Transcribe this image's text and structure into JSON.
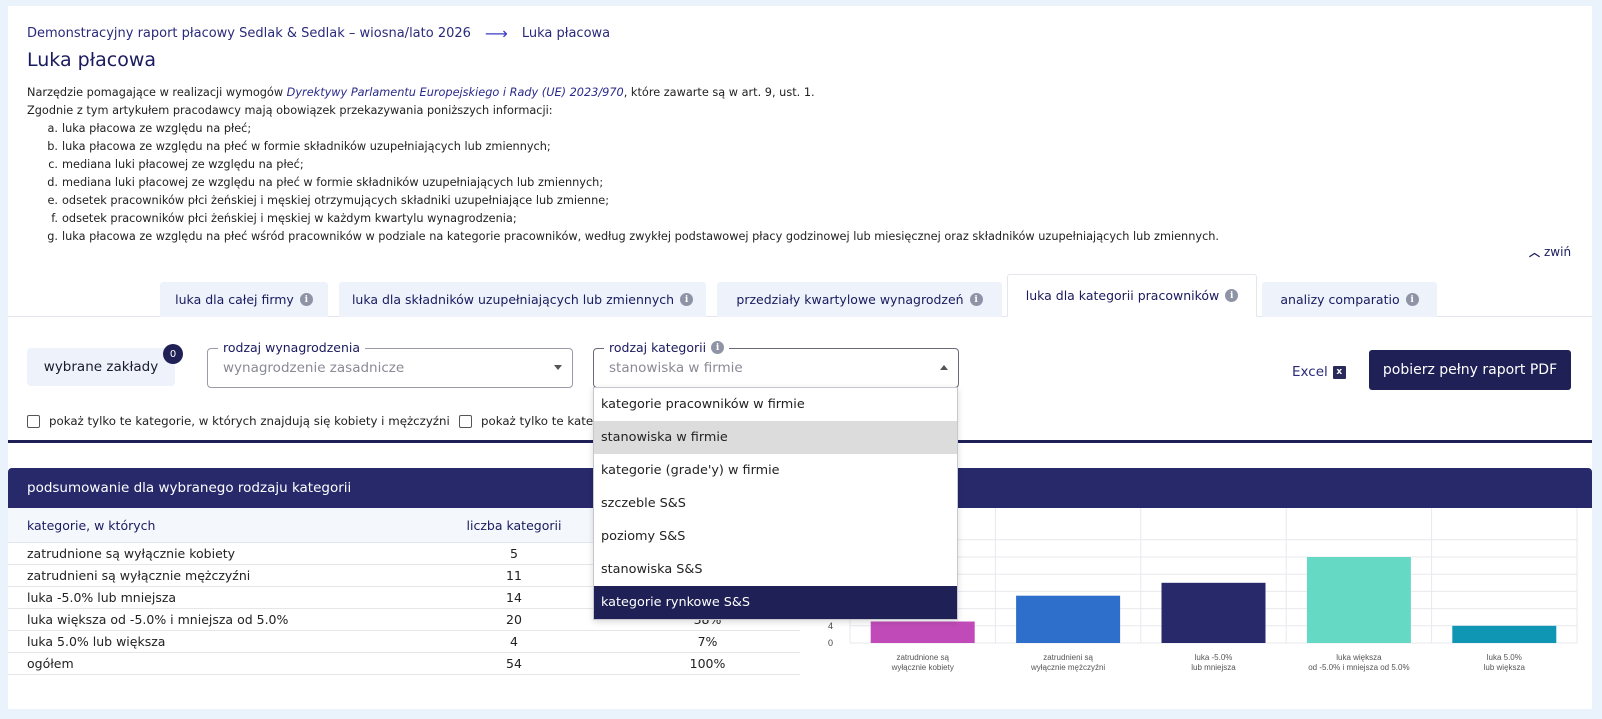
{
  "breadcrumb": {
    "parent": "Demonstracyjny raport płacowy Sedlak & Sedlak – wiosna/lato 2026",
    "arrow": "⟶",
    "current": "Luka płacowa"
  },
  "page_title": "Luka płacowa",
  "intro": {
    "line1_before": "Narzędzie pomagające w realizacji wymogów ",
    "line1_link": "Dyrektywy Parlamentu Europejskiego i Rady (UE) 2023/970",
    "line1_after": ", które zawarte są w art. 9, ust. 1.",
    "line2": "Zgodnie z tym artykułem pracodawcy mają obowiązek przekazywania poniższych informacji:",
    "items": [
      {
        "letter": "a.",
        "text": "luka płacowa ze względu na płeć;"
      },
      {
        "letter": "b.",
        "text": "luka płacowa ze względu na płeć w formie składników uzupełniających lub zmiennych;"
      },
      {
        "letter": "c.",
        "text": "mediana luki płacowej ze względu na płeć;"
      },
      {
        "letter": "d.",
        "text": "mediana luki płacowej ze względu na płeć w formie składników uzupełniających lub zmiennych;"
      },
      {
        "letter": "e.",
        "text": "odsetek pracowników płci żeńskiej i męskiej otrzymujących składniki uzupełniające lub zmienne;"
      },
      {
        "letter": "f.",
        "text": "odsetek pracowników płci żeńskiej i męskiej w każdym kwartylu wynagrodzenia;"
      },
      {
        "letter": "g.",
        "text": "luka płacowa ze względu na płeć wśród pracowników w podziale na kategorie pracowników, według zwykłej podstawowej płacy godzinowej lub miesięcznej oraz składników uzupełniających lub zmiennych."
      }
    ],
    "collapse_label": "zwiń"
  },
  "tabs": [
    {
      "label": "luka dla całej firmy",
      "active": false
    },
    {
      "label": "luka dla składników uzupełniających lub zmiennych",
      "active": false
    },
    {
      "label": "przedziały kwartylowe wynagrodzeń",
      "active": false
    },
    {
      "label": "luka dla kategorii pracowników",
      "active": true
    },
    {
      "label": "analizy comparatio",
      "active": false
    }
  ],
  "info_glyph": "i",
  "filters": {
    "zaklady_label": "wybrane zakłady",
    "zaklady_count": "0",
    "wynagrodzenie": {
      "legend": "rodzaj wynagrodzenia",
      "value": "wynagrodzenie zasadnicze"
    },
    "kategoria": {
      "legend": "rodzaj kategorii",
      "value": "stanowiska w firmie",
      "options": [
        "kategorie pracowników w firmie",
        "stanowiska w firmie",
        "kategorie (grade'y) w firmie",
        "szczeble S&S",
        "poziomy S&S",
        "stanowiska S&S",
        "kategorie rynkowe S&S"
      ],
      "hover_index": 1,
      "selected_index": 6
    },
    "checkbox1": "pokaż tylko te kategorie, w których znajdują się kobiety i mężczyźni",
    "checkbox2": "pokaż tylko te kategorie"
  },
  "actions": {
    "excel_label": "Excel",
    "excel_icon": "x",
    "pdf_label": "pobierz pełny raport PDF"
  },
  "summary": {
    "title": "podsumowanie dla wybranego rodzaju kategorii",
    "columns": [
      "kategorie, w których",
      "liczba kategorii",
      ""
    ],
    "rows": [
      {
        "label": "zatrudnione są wyłącznie kobiety",
        "count": "5",
        "pct": ""
      },
      {
        "label": "zatrudnieni są wyłącznie mężczyźni",
        "count": "11",
        "pct": ""
      },
      {
        "label": "luka -5.0% lub mniejsza",
        "count": "14",
        "pct": ""
      },
      {
        "label": "luka większa od -5.0% i mniejsza od 5.0%",
        "count": "20",
        "pct": "38%"
      },
      {
        "label": "luka 5.0% lub większa",
        "count": "4",
        "pct": "7%"
      },
      {
        "label": "ogółem",
        "count": "54",
        "pct": "100%"
      }
    ]
  },
  "chart_data": {
    "type": "bar",
    "categories": [
      [
        "zatrudnione są",
        "wyłącznie kobiety"
      ],
      [
        "zatrudnieni są",
        "wyłącznie mężczyźni"
      ],
      [
        "luka -5.0%",
        "lub mniejsza"
      ],
      [
        "luka większa",
        "od -5.0% i mniejsza od 5.0%"
      ],
      [
        "luka 5.0%",
        "lub większa"
      ]
    ],
    "values": [
      5,
      11,
      14,
      20,
      4
    ],
    "colors": [
      "#c04bb8",
      "#2f6fcc",
      "#27296b",
      "#66d9c4",
      "#0f96b4"
    ],
    "ytick_labels": [
      "0",
      "4"
    ],
    "ylim": [
      0,
      20
    ],
    "grid": true
  }
}
